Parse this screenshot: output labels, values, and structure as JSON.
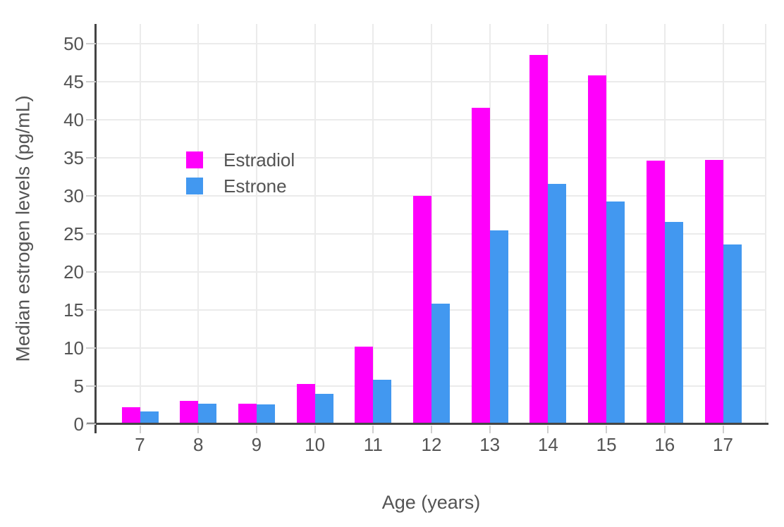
{
  "chart_data": {
    "type": "bar",
    "title": "",
    "xlabel": "Age (years)",
    "ylabel": "Median estrogen levels (pg/mL)",
    "categories": [
      7,
      8,
      9,
      10,
      11,
      12,
      13,
      14,
      15,
      16,
      17
    ],
    "series": [
      {
        "name": "Estradiol",
        "color": "#FF00FB",
        "values": [
          2.2,
          3.1,
          2.7,
          5.3,
          10.2,
          30.0,
          41.6,
          48.5,
          45.8,
          34.6,
          34.7
        ]
      },
      {
        "name": "Estrone",
        "color": "#4298F0",
        "values": [
          1.7,
          2.7,
          2.6,
          4.0,
          5.8,
          15.8,
          25.5,
          31.6,
          29.3,
          26.6,
          23.6
        ]
      }
    ],
    "ylim": [
      0,
      52.6
    ],
    "ytick_step": 5,
    "ytick_values": [
      0,
      5,
      10,
      15,
      20,
      25,
      30,
      35,
      40,
      45,
      50
    ],
    "grid": true,
    "legend_position": "inside-top-left"
  }
}
